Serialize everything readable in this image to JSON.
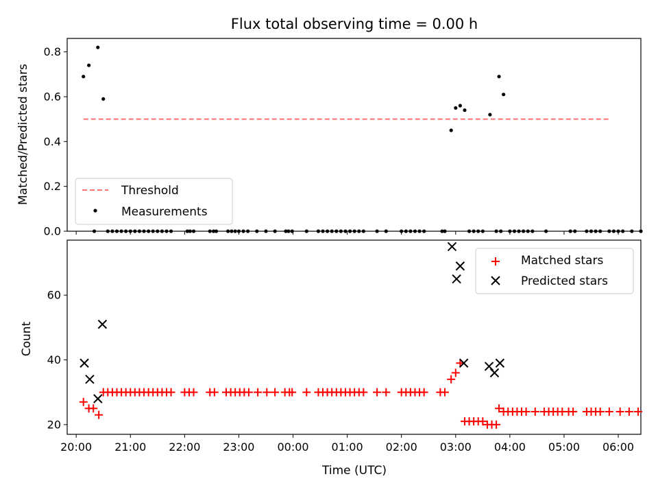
{
  "chart_data": [
    {
      "type": "scatter",
      "title": "Flux total observing time = 0.00 h",
      "xlabel": "",
      "ylabel": "Matched/Predicted stars",
      "xlim": [
        "19:50",
        "06:25"
      ],
      "ylim": [
        0,
        0.86
      ],
      "yticks": [
        0.0,
        0.2,
        0.4,
        0.6,
        0.8
      ],
      "ytick_labels": [
        "0.0",
        "0.2",
        "0.4",
        "0.6",
        "0.8"
      ],
      "xticks": [
        "20:00",
        "21:00",
        "22:00",
        "23:00",
        "00:00",
        "01:00",
        "02:00",
        "03:00",
        "04:00",
        "05:00",
        "06:00"
      ],
      "show_xtick_labels": false,
      "legend_position": "lower-left",
      "threshold": {
        "name": "Threshold",
        "value": 0.5,
        "x_start": "20:08",
        "x_end": "05:52",
        "color": "#ff7070",
        "style": "dashed"
      },
      "series": [
        {
          "name": "Measurements",
          "marker": "dot",
          "color": "#000000",
          "points": [
            [
              "20:08",
              0.69
            ],
            [
              "20:14",
              0.74
            ],
            [
              "20:20",
              0.0
            ],
            [
              "20:24",
              0.82
            ],
            [
              "20:30",
              0.59
            ],
            [
              "20:35",
              0.0
            ],
            [
              "20:40",
              0.0
            ],
            [
              "20:45",
              0.0
            ],
            [
              "20:50",
              0.0
            ],
            [
              "20:55",
              0.0
            ],
            [
              "21:00",
              0.0
            ],
            [
              "21:05",
              0.0
            ],
            [
              "21:10",
              0.0
            ],
            [
              "21:15",
              0.0
            ],
            [
              "21:20",
              0.0
            ],
            [
              "21:25",
              0.0
            ],
            [
              "21:30",
              0.0
            ],
            [
              "21:35",
              0.0
            ],
            [
              "21:40",
              0.0
            ],
            [
              "21:45",
              0.0
            ],
            [
              "22:03",
              0.0
            ],
            [
              "22:06",
              0.0
            ],
            [
              "22:10",
              0.0
            ],
            [
              "22:28",
              0.0
            ],
            [
              "22:32",
              0.0
            ],
            [
              "22:35",
              0.0
            ],
            [
              "22:48",
              0.0
            ],
            [
              "22:52",
              0.0
            ],
            [
              "22:56",
              0.0
            ],
            [
              "23:00",
              0.0
            ],
            [
              "23:05",
              0.0
            ],
            [
              "23:10",
              0.0
            ],
            [
              "23:20",
              0.0
            ],
            [
              "23:30",
              0.0
            ],
            [
              "23:40",
              0.0
            ],
            [
              "23:52",
              0.0
            ],
            [
              "23:55",
              0.0
            ],
            [
              "23:59",
              0.0
            ],
            [
              "00:15",
              0.0
            ],
            [
              "00:28",
              0.0
            ],
            [
              "00:33",
              0.0
            ],
            [
              "00:38",
              0.0
            ],
            [
              "00:43",
              0.0
            ],
            [
              "00:48",
              0.0
            ],
            [
              "00:53",
              0.0
            ],
            [
              "00:58",
              0.0
            ],
            [
              "01:03",
              0.0
            ],
            [
              "01:08",
              0.0
            ],
            [
              "01:13",
              0.0
            ],
            [
              "01:18",
              0.0
            ],
            [
              "01:33",
              0.0
            ],
            [
              "01:43",
              0.0
            ],
            [
              "02:00",
              0.0
            ],
            [
              "02:05",
              0.0
            ],
            [
              "02:10",
              0.0
            ],
            [
              "02:15",
              0.0
            ],
            [
              "02:20",
              0.0
            ],
            [
              "02:25",
              0.0
            ],
            [
              "02:45",
              0.0
            ],
            [
              "02:48",
              0.0
            ],
            [
              "02:55",
              0.45
            ],
            [
              "03:00",
              0.55
            ],
            [
              "03:05",
              0.56
            ],
            [
              "03:10",
              0.54
            ],
            [
              "03:15",
              0.0
            ],
            [
              "03:20",
              0.0
            ],
            [
              "03:25",
              0.0
            ],
            [
              "03:30",
              0.0
            ],
            [
              "03:38",
              0.52
            ],
            [
              "03:45",
              0.0
            ],
            [
              "03:50",
              0.0
            ],
            [
              "03:48",
              0.69
            ],
            [
              "03:53",
              0.61
            ],
            [
              "04:00",
              0.0
            ],
            [
              "04:05",
              0.0
            ],
            [
              "04:10",
              0.0
            ],
            [
              "04:15",
              0.0
            ],
            [
              "04:20",
              0.0
            ],
            [
              "04:25",
              0.0
            ],
            [
              "04:40",
              0.0
            ],
            [
              "05:07",
              0.0
            ],
            [
              "05:12",
              0.0
            ],
            [
              "05:25",
              0.0
            ],
            [
              "05:30",
              0.0
            ],
            [
              "05:35",
              0.0
            ],
            [
              "05:40",
              0.0
            ],
            [
              "05:50",
              0.0
            ],
            [
              "05:55",
              0.0
            ],
            [
              "06:00",
              0.0
            ],
            [
              "06:05",
              0.0
            ],
            [
              "06:15",
              0.0
            ],
            [
              "06:25",
              0.0
            ]
          ]
        }
      ]
    },
    {
      "type": "scatter",
      "title": "",
      "xlabel": "Time (UTC)",
      "ylabel": "Count",
      "xlim": [
        "19:50",
        "06:25"
      ],
      "ylim": [
        17,
        77
      ],
      "yticks": [
        20,
        40,
        60
      ],
      "ytick_labels": [
        "20",
        "40",
        "60"
      ],
      "xticks": [
        "20:00",
        "21:00",
        "22:00",
        "23:00",
        "00:00",
        "01:00",
        "02:00",
        "03:00",
        "04:00",
        "05:00",
        "06:00"
      ],
      "xtick_labels": [
        "20:00",
        "21:00",
        "22:00",
        "23:00",
        "00:00",
        "01:00",
        "02:00",
        "03:00",
        "04:00",
        "05:00",
        "06:00"
      ],
      "show_xtick_labels": true,
      "legend_position": "upper-right",
      "series": [
        {
          "name": "Matched stars",
          "marker": "plus",
          "color": "#ff0000",
          "points": [
            [
              "20:08",
              27
            ],
            [
              "20:14",
              25
            ],
            [
              "20:19",
              25
            ],
            [
              "20:25",
              23
            ],
            [
              "20:30",
              30
            ],
            [
              "20:35",
              30
            ],
            [
              "20:40",
              30
            ],
            [
              "20:45",
              30
            ],
            [
              "20:50",
              30
            ],
            [
              "20:55",
              30
            ],
            [
              "21:00",
              30
            ],
            [
              "21:05",
              30
            ],
            [
              "21:10",
              30
            ],
            [
              "21:15",
              30
            ],
            [
              "21:20",
              30
            ],
            [
              "21:25",
              30
            ],
            [
              "21:30",
              30
            ],
            [
              "21:35",
              30
            ],
            [
              "21:40",
              30
            ],
            [
              "21:45",
              30
            ],
            [
              "22:00",
              30
            ],
            [
              "22:05",
              30
            ],
            [
              "22:10",
              30
            ],
            [
              "22:28",
              30
            ],
            [
              "22:33",
              30
            ],
            [
              "22:46",
              30
            ],
            [
              "22:51",
              30
            ],
            [
              "22:56",
              30
            ],
            [
              "23:01",
              30
            ],
            [
              "23:06",
              30
            ],
            [
              "23:11",
              30
            ],
            [
              "23:21",
              30
            ],
            [
              "23:31",
              30
            ],
            [
              "23:40",
              30
            ],
            [
              "23:51",
              30
            ],
            [
              "23:56",
              30
            ],
            [
              "23:59",
              30
            ],
            [
              "00:15",
              30
            ],
            [
              "00:28",
              30
            ],
            [
              "00:33",
              30
            ],
            [
              "00:38",
              30
            ],
            [
              "00:43",
              30
            ],
            [
              "00:48",
              30
            ],
            [
              "00:53",
              30
            ],
            [
              "00:58",
              30
            ],
            [
              "01:03",
              30
            ],
            [
              "01:08",
              30
            ],
            [
              "01:13",
              30
            ],
            [
              "01:18",
              30
            ],
            [
              "01:33",
              30
            ],
            [
              "01:43",
              30
            ],
            [
              "02:00",
              30
            ],
            [
              "02:05",
              30
            ],
            [
              "02:10",
              30
            ],
            [
              "02:15",
              30
            ],
            [
              "02:20",
              30
            ],
            [
              "02:25",
              30
            ],
            [
              "02:43",
              30
            ],
            [
              "02:48",
              30
            ],
            [
              "02:55",
              34
            ],
            [
              "03:00",
              36
            ],
            [
              "03:05",
              39
            ],
            [
              "03:10",
              21
            ],
            [
              "03:15",
              21
            ],
            [
              "03:20",
              21
            ],
            [
              "03:25",
              21
            ],
            [
              "03:30",
              21
            ],
            [
              "03:35",
              20
            ],
            [
              "03:40",
              20
            ],
            [
              "03:45",
              20
            ],
            [
              "03:48",
              25
            ],
            [
              "03:53",
              24
            ],
            [
              "03:58",
              24
            ],
            [
              "04:03",
              24
            ],
            [
              "04:08",
              24
            ],
            [
              "04:13",
              24
            ],
            [
              "04:18",
              24
            ],
            [
              "04:28",
              24
            ],
            [
              "04:38",
              24
            ],
            [
              "04:43",
              24
            ],
            [
              "04:48",
              24
            ],
            [
              "04:53",
              24
            ],
            [
              "04:58",
              24
            ],
            [
              "05:05",
              24
            ],
            [
              "05:10",
              24
            ],
            [
              "05:25",
              24
            ],
            [
              "05:30",
              24
            ],
            [
              "05:35",
              24
            ],
            [
              "05:40",
              24
            ],
            [
              "05:50",
              24
            ],
            [
              "06:02",
              24
            ],
            [
              "06:12",
              24
            ],
            [
              "06:22",
              24
            ]
          ]
        },
        {
          "name": "Predicted stars",
          "marker": "x",
          "color": "#000000",
          "points": [
            [
              "20:09",
              39
            ],
            [
              "20:15",
              34
            ],
            [
              "20:24",
              28
            ],
            [
              "20:29",
              51
            ],
            [
              "02:56",
              75
            ],
            [
              "03:01",
              65
            ],
            [
              "03:05",
              69
            ],
            [
              "03:09",
              39
            ],
            [
              "03:37",
              38
            ],
            [
              "03:43",
              36
            ],
            [
              "03:49",
              39
            ]
          ]
        }
      ]
    }
  ]
}
